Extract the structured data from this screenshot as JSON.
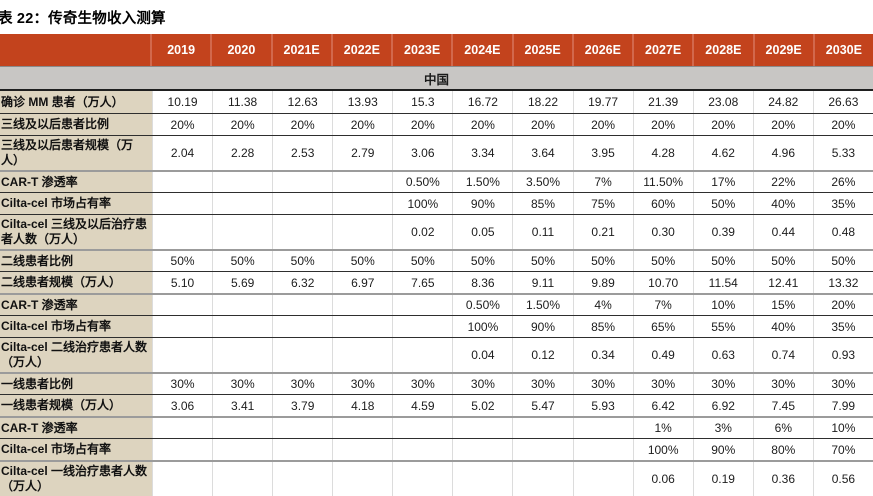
{
  "title": "表 22：传奇生物收入测算",
  "colors": {
    "header_bg": "#C3431D",
    "header_divider": "#D2684C",
    "region_bg": "#C8C6C4",
    "label_bg": "#DDD4BF"
  },
  "table": {
    "region": "中国",
    "columns": [
      "2019",
      "2020",
      "2021E",
      "2022E",
      "2023E",
      "2024E",
      "2025E",
      "2026E",
      "2027E",
      "2028E",
      "2029E",
      "2030E"
    ],
    "rows": [
      {
        "label": "确诊 MM 患者（万人）",
        "sep": "none",
        "values": [
          "10.19",
          "11.38",
          "12.63",
          "13.93",
          "15.3",
          "16.72",
          "18.22",
          "19.77",
          "21.39",
          "23.08",
          "24.82",
          "26.63"
        ]
      },
      {
        "label": "三线及以后患者比例",
        "sep": "thin",
        "values": [
          "20%",
          "20%",
          "20%",
          "20%",
          "20%",
          "20%",
          "20%",
          "20%",
          "20%",
          "20%",
          "20%",
          "20%"
        ]
      },
      {
        "label": "三线及以后患者规模（万人）",
        "sep": "thin",
        "values": [
          "2.04",
          "2.28",
          "2.53",
          "2.79",
          "3.06",
          "3.34",
          "3.64",
          "3.95",
          "4.28",
          "4.62",
          "4.96",
          "5.33"
        ]
      },
      {
        "label": "CAR-T 渗透率",
        "sep": "thick",
        "values": [
          "",
          "",
          "",
          "",
          "0.50%",
          "1.50%",
          "3.50%",
          "7%",
          "11.50%",
          "17%",
          "22%",
          "26%"
        ]
      },
      {
        "label": "Cilta-cel 市场占有率",
        "sep": "thin",
        "values": [
          "",
          "",
          "",
          "",
          "100%",
          "90%",
          "85%",
          "75%",
          "60%",
          "50%",
          "40%",
          "35%"
        ]
      },
      {
        "label": "Cilta-cel 三线及以后治疗患者人数（万人）",
        "sep": "thin",
        "values": [
          "",
          "",
          "",
          "",
          "0.02",
          "0.05",
          "0.11",
          "0.21",
          "0.30",
          "0.39",
          "0.44",
          "0.48"
        ]
      },
      {
        "label": "二线患者比例",
        "sep": "thick",
        "values": [
          "50%",
          "50%",
          "50%",
          "50%",
          "50%",
          "50%",
          "50%",
          "50%",
          "50%",
          "50%",
          "50%",
          "50%"
        ]
      },
      {
        "label": "二线患者规模（万人）",
        "sep": "thin",
        "values": [
          "5.10",
          "5.69",
          "6.32",
          "6.97",
          "7.65",
          "8.36",
          "9.11",
          "9.89",
          "10.70",
          "11.54",
          "12.41",
          "13.32"
        ]
      },
      {
        "label": "CAR-T 渗透率",
        "sep": "thick",
        "values": [
          "",
          "",
          "",
          "",
          "",
          "0.50%",
          "1.50%",
          "4%",
          "7%",
          "10%",
          "15%",
          "20%"
        ]
      },
      {
        "label": "Cilta-cel 市场占有率",
        "sep": "thin",
        "values": [
          "",
          "",
          "",
          "",
          "",
          "100%",
          "90%",
          "85%",
          "65%",
          "55%",
          "40%",
          "35%"
        ]
      },
      {
        "label": "Cilta-cel 二线治疗患者人数（万人）",
        "sep": "thin",
        "values": [
          "",
          "",
          "",
          "",
          "",
          "0.04",
          "0.12",
          "0.34",
          "0.49",
          "0.63",
          "0.74",
          "0.93"
        ]
      },
      {
        "label": "一线患者比例",
        "sep": "thick",
        "values": [
          "30%",
          "30%",
          "30%",
          "30%",
          "30%",
          "30%",
          "30%",
          "30%",
          "30%",
          "30%",
          "30%",
          "30%"
        ]
      },
      {
        "label": "一线患者规模（万人）",
        "sep": "thin",
        "values": [
          "3.06",
          "3.41",
          "3.79",
          "4.18",
          "4.59",
          "5.02",
          "5.47",
          "5.93",
          "6.42",
          "6.92",
          "7.45",
          "7.99"
        ]
      },
      {
        "label": "CAR-T 渗透率",
        "sep": "thick",
        "values": [
          "",
          "",
          "",
          "",
          "",
          "",
          "",
          "",
          "1%",
          "3%",
          "6%",
          "10%"
        ]
      },
      {
        "label": "Cilta-cel 市场占有率",
        "sep": "thin",
        "values": [
          "",
          "",
          "",
          "",
          "",
          "",
          "",
          "",
          "100%",
          "90%",
          "80%",
          "70%"
        ]
      },
      {
        "label": "Cilta-cel 一线治疗患者人数（万人）",
        "sep": "thick",
        "values": [
          "",
          "",
          "",
          "",
          "",
          "",
          "",
          "",
          "0.06",
          "0.19",
          "0.36",
          "0.56"
        ]
      }
    ]
  }
}
